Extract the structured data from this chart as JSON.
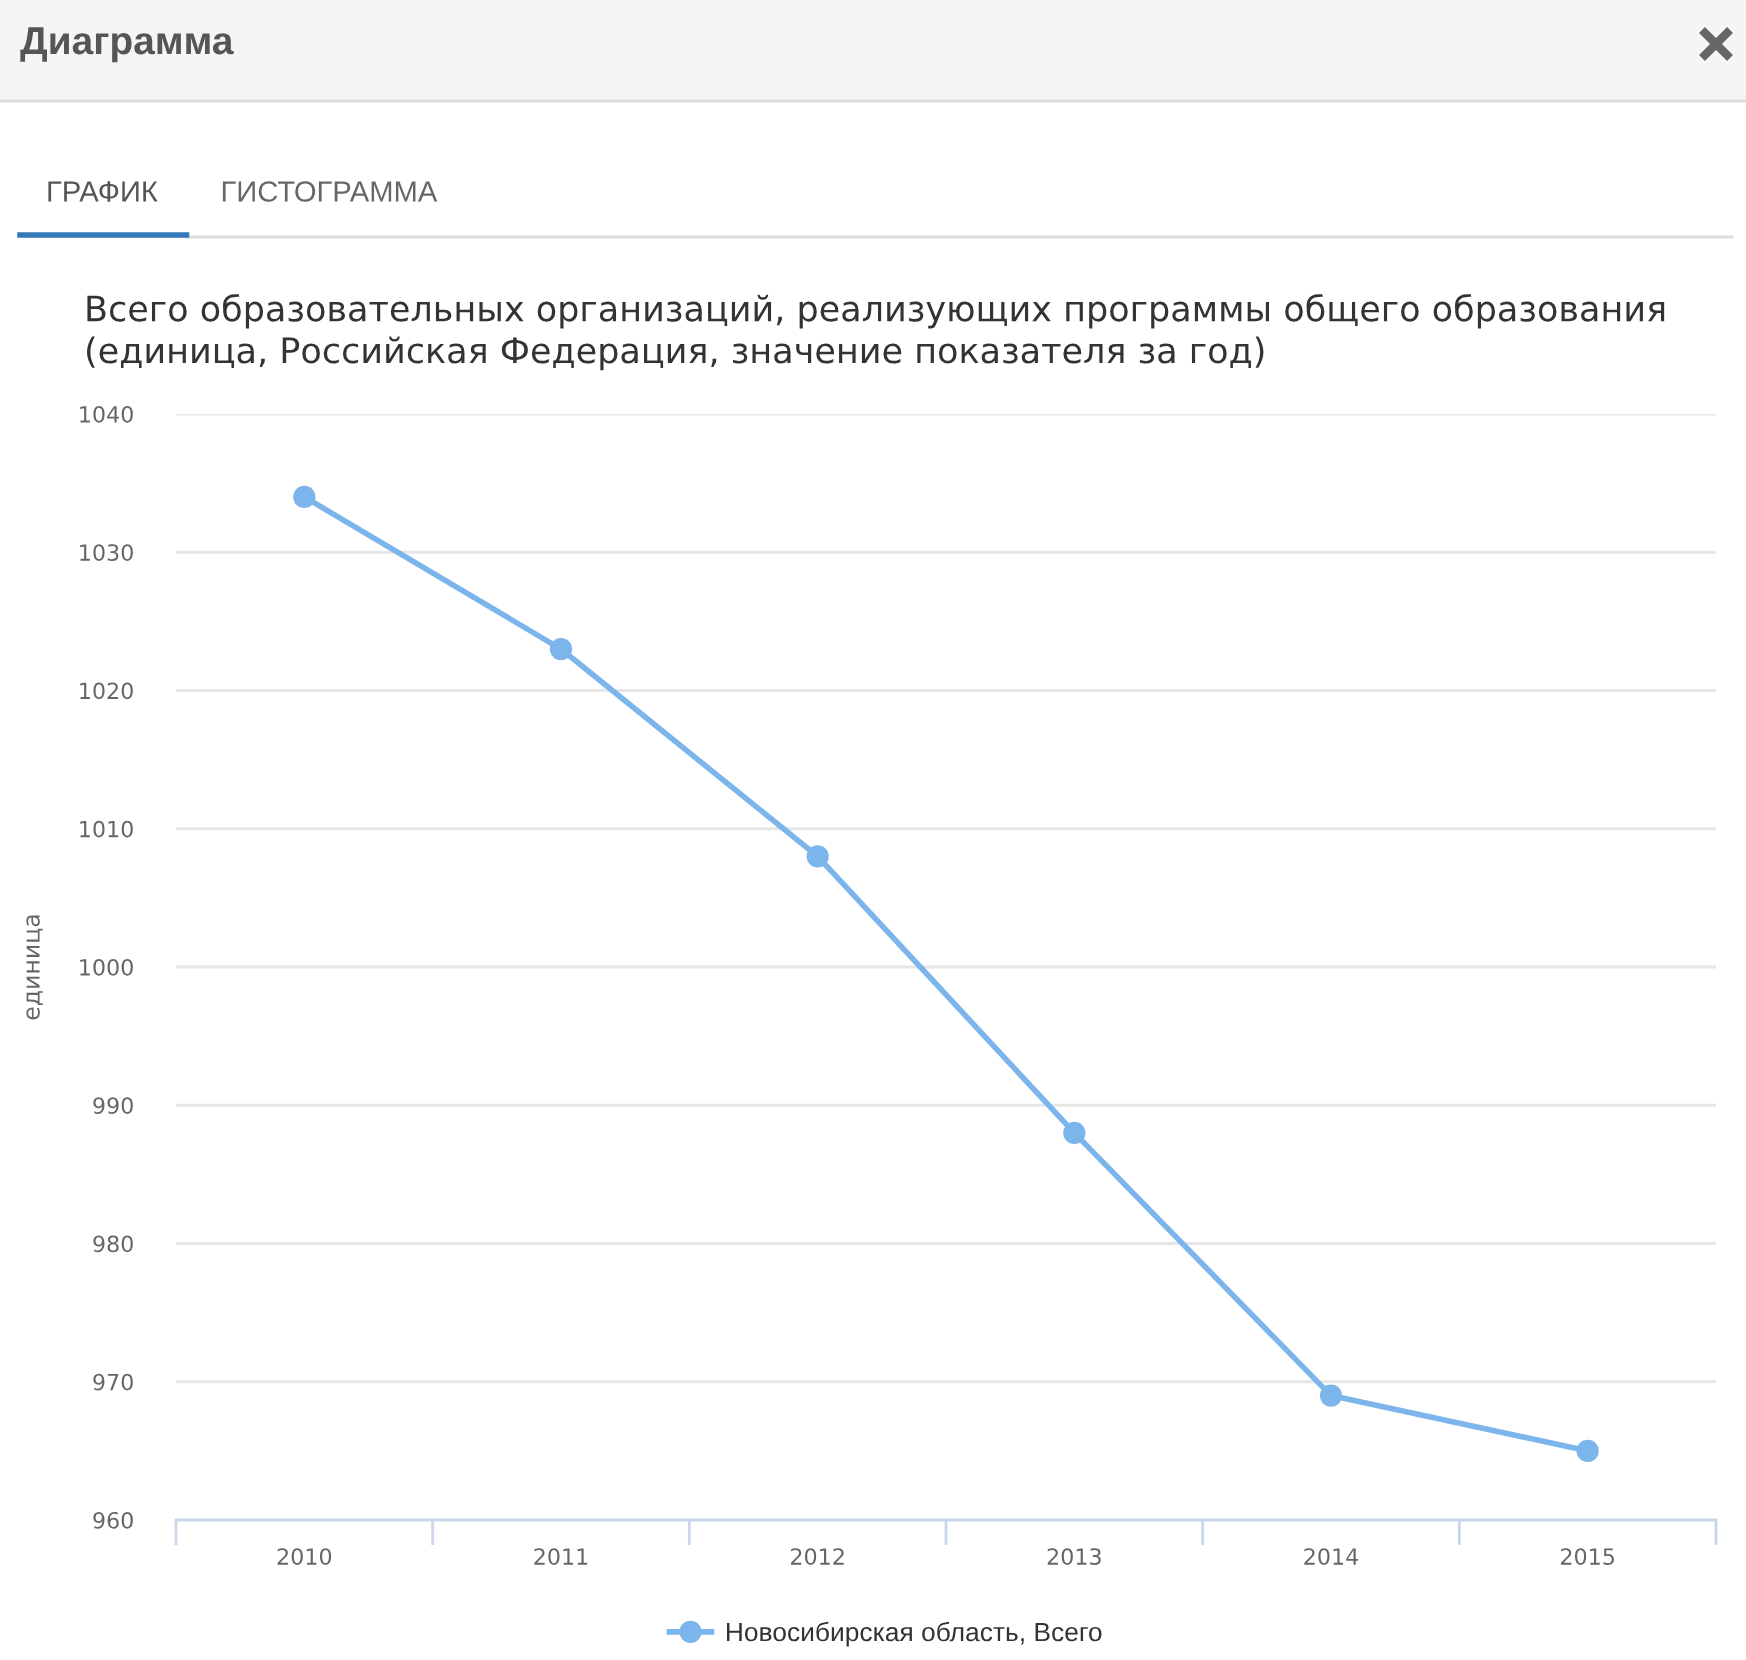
{
  "chart_data": {
    "type": "line",
    "title": "Всего образовательных организаций, реализующих программы общего образования (единица, Российская Федерация, значение показателя за год)",
    "ylabel": "единица",
    "categories": [
      "2010",
      "2011",
      "2012",
      "2013",
      "2014",
      "2015"
    ],
    "series": [
      {
        "name": "Новосибирская область, Всего",
        "color": "#7cb5ec",
        "values": [
          1034,
          1023,
          1008,
          988,
          969,
          965
        ]
      }
    ],
    "ylim": [
      960,
      1040
    ],
    "yticks": [
      960,
      970,
      980,
      990,
      1000,
      1010,
      1020,
      1030,
      1040
    ],
    "grid": "y",
    "legend": "bottom",
    "marker": "circle",
    "line_style": "solid",
    "annotations": [
      "Диаграмма",
      "ГРАФИК",
      "ГИСТОГРАММА"
    ]
  }
}
